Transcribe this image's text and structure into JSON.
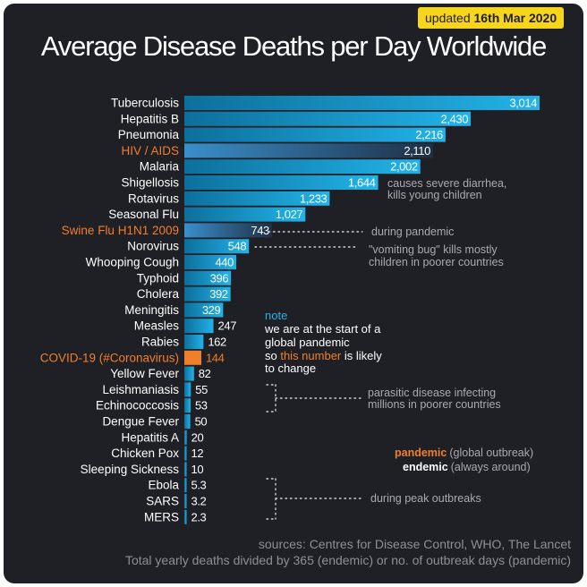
{
  "badge": {
    "prefix": "updated ",
    "date": "16th Mar 2020"
  },
  "chart_data": {
    "type": "bar",
    "orientation": "horizontal",
    "title": "Average Disease Deaths per Day Worldwide",
    "categories": [
      "Tuberculosis",
      "Hepatitis B",
      "Pneumonia",
      "HIV / AIDS",
      "Malaria",
      "Shigellosis",
      "Rotavirus",
      "Seasonal Flu",
      "Swine Flu H1N1 2009",
      "Norovirus",
      "Whooping Cough",
      "Typhoid",
      "Cholera",
      "Meningitis",
      "Measles",
      "Rabies",
      "COVID-19 (#Coronavirus)",
      "Yellow Fever",
      "Leishmaniasis",
      "Echinococcosis",
      "Dengue Fever",
      "Hepatitis A",
      "Chicken Pox",
      "Sleeping Sickness",
      "Ebola",
      "SARS",
      "MERS"
    ],
    "values": [
      3014,
      2430,
      2216,
      2110,
      2002,
      1644,
      1233,
      1027,
      743,
      548,
      440,
      396,
      392,
      329,
      247,
      162,
      144,
      82,
      55,
      53,
      50,
      20,
      12,
      10,
      5.3,
      3.2,
      2.3
    ],
    "value_labels": [
      "3,014",
      "2,430",
      "2,216",
      "2,110",
      "2,002",
      "1,644",
      "1,233",
      "1,027",
      "743",
      "548",
      "440",
      "396",
      "392",
      "329",
      "247",
      "162",
      "144",
      "82",
      "55",
      "53",
      "50",
      "20",
      "12",
      "10",
      "5.3",
      "3.2",
      "2.3"
    ],
    "highlight": {
      "HIV / AIDS": "#f07f2c",
      "Swine Flu H1N1 2009": "#f07f2c",
      "COVID-19 (#Coronavirus)": "#f07f2c"
    },
    "styles": {
      "HIV / AIDS": "gradient-bar",
      "Swine Flu H1N1 2009": "gradient-bar",
      "COVID-19 (#Coronavirus)": "orange-bar"
    },
    "colors": {
      "bar": "#1aa0d4",
      "bar_dark": "#0d6f9c",
      "covid": "#f07f2c",
      "label": "#ffffff",
      "highlight_label": "#f07f2c"
    },
    "xlim": [
      0,
      3014
    ],
    "grid": false,
    "annotations": {
      "shigellosis": [
        "causes severe diarrhea,",
        "kills young children"
      ],
      "swine": "during pandemic",
      "norovirus": [
        "\"vomiting bug\" kills mostly",
        "children in poorer countries"
      ],
      "note": {
        "heading": "note",
        "line1": "we are at the start of a",
        "line2": "global pandemic",
        "line3_pre": "so ",
        "line3_hl": "this number",
        "line3_post": " is likely",
        "line4": "to change"
      },
      "parasitic": [
        "parasitic disease infecting",
        "millions in poorer countries"
      ],
      "pandemic_term": "pandemic",
      "pandemic_def": "(global outbreak)",
      "endemic_term": "endemic",
      "endemic_def": "(always around)",
      "peak": "during peak outbreaks"
    }
  },
  "footer": {
    "sources": "sources: Centres for Disease Control, WHO, The Lancet",
    "method": "Total yearly deaths divided by 365 (endemic) or no. of outbreak days (pandemic)"
  }
}
